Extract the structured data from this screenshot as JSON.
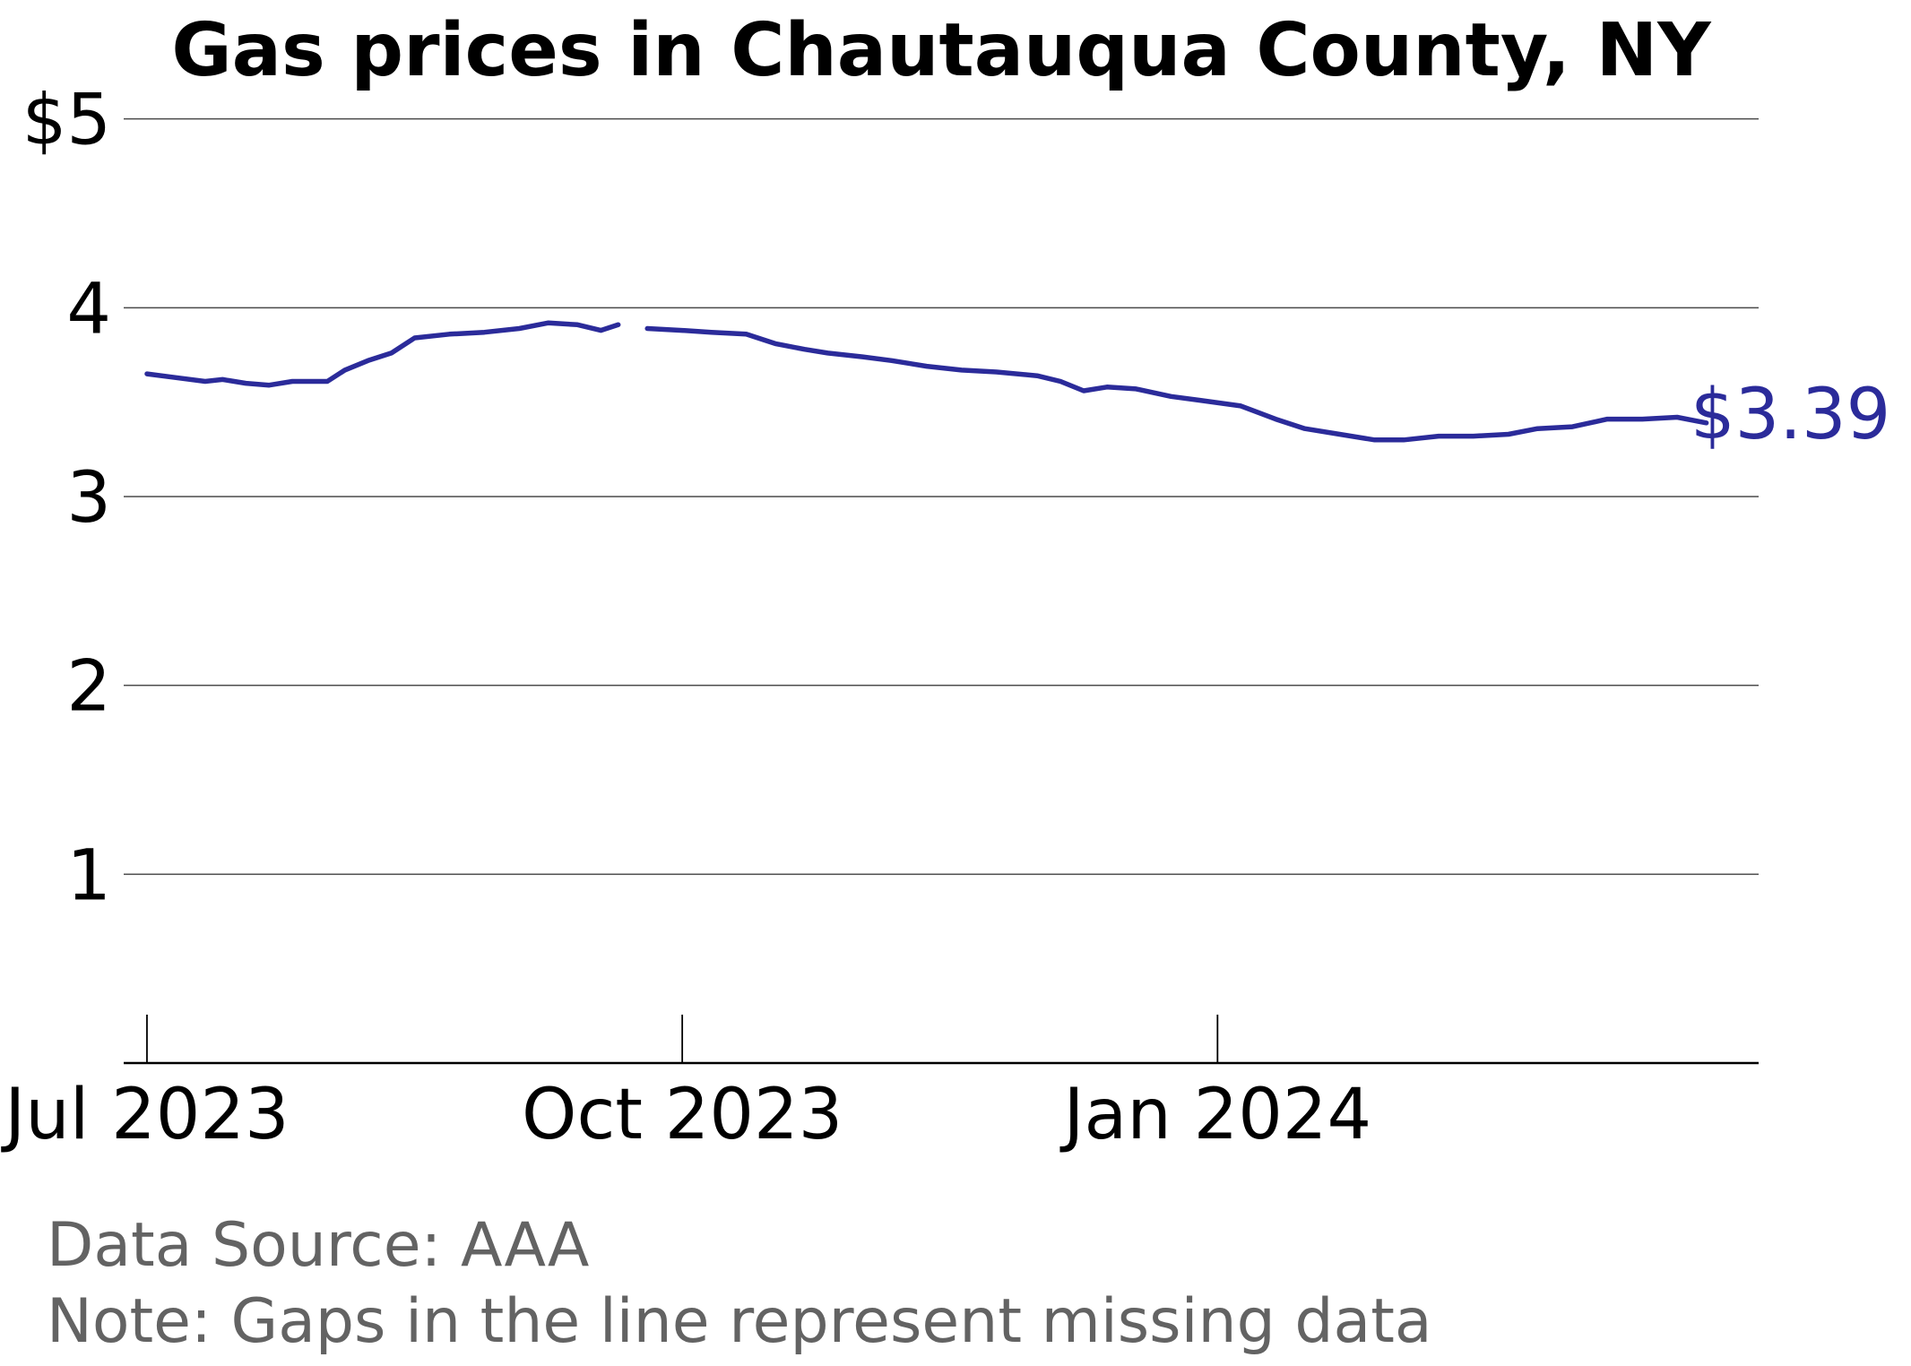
{
  "chart_data": {
    "type": "line",
    "title": "Gas prices in Chautauqua County, NY",
    "y_tick_labels": [
      "$5",
      "4",
      "3",
      "2",
      "1"
    ],
    "y_tick_values": [
      5,
      4,
      3,
      2,
      1
    ],
    "ylim": [
      0,
      5.25
    ],
    "x_tick_labels": [
      "Jul 2023",
      "Oct 2023",
      "Jan 2024"
    ],
    "x_tick_dates": [
      "2023-07-01",
      "2023-10-01",
      "2024-01-01"
    ],
    "x_range": [
      "2023-06-27",
      "2024-04-03"
    ],
    "grid": "horizontal",
    "line_color": "#2b2b9a",
    "end_label": "$3.39",
    "footer": {
      "source": "Data Source: AAA",
      "note": "Note: Gaps in the line represent missing data"
    },
    "series": [
      {
        "segments": [
          {
            "points": [
              [
                "2023-07-01",
                3.65
              ],
              [
                "2023-07-06",
                3.63
              ],
              [
                "2023-07-11",
                3.61
              ],
              [
                "2023-07-14",
                3.62
              ],
              [
                "2023-07-18",
                3.6
              ],
              [
                "2023-07-22",
                3.59
              ],
              [
                "2023-07-26",
                3.61
              ],
              [
                "2023-08-01",
                3.61
              ],
              [
                "2023-08-04",
                3.67
              ],
              [
                "2023-08-08",
                3.72
              ],
              [
                "2023-08-12",
                3.76
              ],
              [
                "2023-08-16",
                3.84
              ],
              [
                "2023-08-22",
                3.86
              ],
              [
                "2023-08-28",
                3.87
              ],
              [
                "2023-09-03",
                3.89
              ],
              [
                "2023-09-08",
                3.92
              ],
              [
                "2023-09-13",
                3.91
              ],
              [
                "2023-09-17",
                3.88
              ],
              [
                "2023-09-20",
                3.91
              ]
            ]
          },
          {
            "points": [
              [
                "2023-09-25",
                3.89
              ],
              [
                "2023-10-01",
                3.88
              ],
              [
                "2023-10-06",
                3.87
              ],
              [
                "2023-10-12",
                3.86
              ],
              [
                "2023-10-17",
                3.81
              ],
              [
                "2023-10-22",
                3.78
              ],
              [
                "2023-10-26",
                3.76
              ],
              [
                "2023-11-01",
                3.74
              ],
              [
                "2023-11-06",
                3.72
              ],
              [
                "2023-11-12",
                3.69
              ],
              [
                "2023-11-18",
                3.67
              ],
              [
                "2023-11-24",
                3.66
              ],
              [
                "2023-12-01",
                3.64
              ],
              [
                "2023-12-05",
                3.61
              ],
              [
                "2023-12-09",
                3.56
              ],
              [
                "2023-12-13",
                3.58
              ],
              [
                "2023-12-18",
                3.57
              ],
              [
                "2023-12-24",
                3.53
              ],
              [
                "2023-12-29",
                3.51
              ],
              [
                "2024-01-05",
                3.48
              ],
              [
                "2024-01-11",
                3.41
              ],
              [
                "2024-01-16",
                3.36
              ],
              [
                "2024-01-22",
                3.33
              ],
              [
                "2024-01-28",
                3.3
              ],
              [
                "2024-02-02",
                3.3
              ],
              [
                "2024-02-08",
                3.32
              ],
              [
                "2024-02-14",
                3.32
              ],
              [
                "2024-02-20",
                3.33
              ],
              [
                "2024-02-25",
                3.36
              ],
              [
                "2024-03-02",
                3.37
              ],
              [
                "2024-03-08",
                3.41
              ],
              [
                "2024-03-14",
                3.41
              ],
              [
                "2024-03-20",
                3.42
              ],
              [
                "2024-03-25",
                3.39
              ]
            ]
          }
        ]
      }
    ]
  }
}
